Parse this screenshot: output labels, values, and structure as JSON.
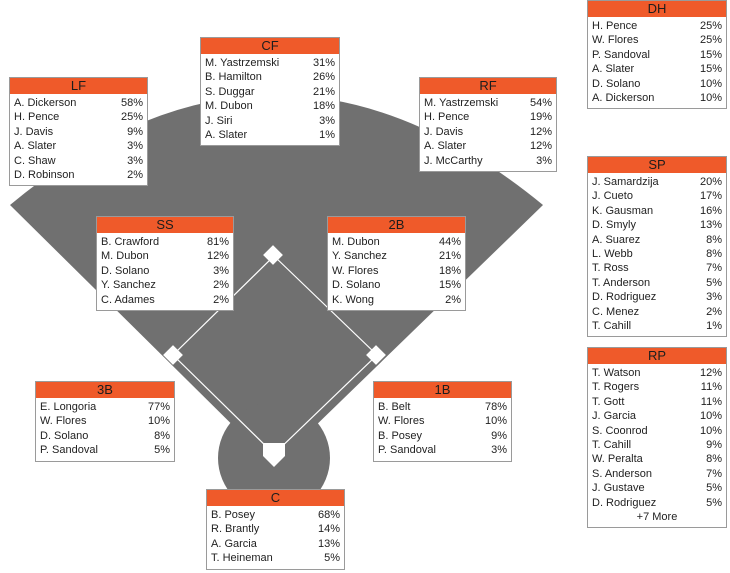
{
  "colors": {
    "accent": "#ef5a2a",
    "field": "#707070",
    "border": "#9a9a9a"
  },
  "positions": {
    "LF": {
      "title": "LF",
      "players": [
        {
          "name": "A. Dickerson",
          "pct": "58%"
        },
        {
          "name": "H. Pence",
          "pct": "25%"
        },
        {
          "name": "J. Davis",
          "pct": "9%"
        },
        {
          "name": "A. Slater",
          "pct": "3%"
        },
        {
          "name": "C. Shaw",
          "pct": "3%"
        },
        {
          "name": "D. Robinson",
          "pct": "2%"
        }
      ]
    },
    "CF": {
      "title": "CF",
      "players": [
        {
          "name": "M. Yastrzemski",
          "pct": "31%"
        },
        {
          "name": "B. Hamilton",
          "pct": "26%"
        },
        {
          "name": "S. Duggar",
          "pct": "21%"
        },
        {
          "name": "M. Dubon",
          "pct": "18%"
        },
        {
          "name": "J. Siri",
          "pct": "3%"
        },
        {
          "name": "A. Slater",
          "pct": "1%"
        }
      ]
    },
    "RF": {
      "title": "RF",
      "players": [
        {
          "name": "M. Yastrzemski",
          "pct": "54%"
        },
        {
          "name": "H. Pence",
          "pct": "19%"
        },
        {
          "name": "J. Davis",
          "pct": "12%"
        },
        {
          "name": "A. Slater",
          "pct": "12%"
        },
        {
          "name": "J. McCarthy",
          "pct": "3%"
        }
      ]
    },
    "SS": {
      "title": "SS",
      "players": [
        {
          "name": "B. Crawford",
          "pct": "81%"
        },
        {
          "name": "M. Dubon",
          "pct": "12%"
        },
        {
          "name": "D. Solano",
          "pct": "3%"
        },
        {
          "name": "Y. Sanchez",
          "pct": "2%"
        },
        {
          "name": "C. Adames",
          "pct": "2%"
        }
      ]
    },
    "2B": {
      "title": "2B",
      "players": [
        {
          "name": "M. Dubon",
          "pct": "44%"
        },
        {
          "name": "Y. Sanchez",
          "pct": "21%"
        },
        {
          "name": "W. Flores",
          "pct": "18%"
        },
        {
          "name": "D. Solano",
          "pct": "15%"
        },
        {
          "name": "K. Wong",
          "pct": "2%"
        }
      ]
    },
    "3B": {
      "title": "3B",
      "players": [
        {
          "name": "E. Longoria",
          "pct": "77%"
        },
        {
          "name": "W. Flores",
          "pct": "10%"
        },
        {
          "name": "D. Solano",
          "pct": "8%"
        },
        {
          "name": "P. Sandoval",
          "pct": "5%"
        }
      ]
    },
    "1B": {
      "title": "1B",
      "players": [
        {
          "name": "B. Belt",
          "pct": "78%"
        },
        {
          "name": "W. Flores",
          "pct": "10%"
        },
        {
          "name": "B. Posey",
          "pct": "9%"
        },
        {
          "name": "P. Sandoval",
          "pct": "3%"
        }
      ]
    },
    "C": {
      "title": "C",
      "players": [
        {
          "name": "B. Posey",
          "pct": "68%"
        },
        {
          "name": "R. Brantly",
          "pct": "14%"
        },
        {
          "name": "A. Garcia",
          "pct": "13%"
        },
        {
          "name": "T. Heineman",
          "pct": "5%"
        }
      ]
    },
    "DH": {
      "title": "DH",
      "players": [
        {
          "name": "H. Pence",
          "pct": "25%"
        },
        {
          "name": "W. Flores",
          "pct": "25%"
        },
        {
          "name": "P. Sandoval",
          "pct": "15%"
        },
        {
          "name": "A. Slater",
          "pct": "15%"
        },
        {
          "name": "D. Solano",
          "pct": "10%"
        },
        {
          "name": "A. Dickerson",
          "pct": "10%"
        }
      ]
    },
    "SP": {
      "title": "SP",
      "players": [
        {
          "name": "J. Samardzija",
          "pct": "20%"
        },
        {
          "name": "J. Cueto",
          "pct": "17%"
        },
        {
          "name": "K. Gausman",
          "pct": "16%"
        },
        {
          "name": "D. Smyly",
          "pct": "13%"
        },
        {
          "name": "A. Suarez",
          "pct": "8%"
        },
        {
          "name": "L. Webb",
          "pct": "8%"
        },
        {
          "name": "T. Ross",
          "pct": "7%"
        },
        {
          "name": "T. Anderson",
          "pct": "5%"
        },
        {
          "name": "D. Rodriguez",
          "pct": "3%"
        },
        {
          "name": "C. Menez",
          "pct": "2%"
        },
        {
          "name": "T. Cahill",
          "pct": "1%"
        }
      ]
    },
    "RP": {
      "title": "RP",
      "more": "+7 More",
      "players": [
        {
          "name": "T. Watson",
          "pct": "12%"
        },
        {
          "name": "T. Rogers",
          "pct": "11%"
        },
        {
          "name": "T. Gott",
          "pct": "11%"
        },
        {
          "name": "J. Garcia",
          "pct": "10%"
        },
        {
          "name": "S. Coonrod",
          "pct": "10%"
        },
        {
          "name": "T. Cahill",
          "pct": "9%"
        },
        {
          "name": "W. Peralta",
          "pct": "8%"
        },
        {
          "name": "S. Anderson",
          "pct": "7%"
        },
        {
          "name": "J. Gustave",
          "pct": "5%"
        },
        {
          "name": "D. Rodriguez",
          "pct": "5%"
        }
      ]
    }
  }
}
